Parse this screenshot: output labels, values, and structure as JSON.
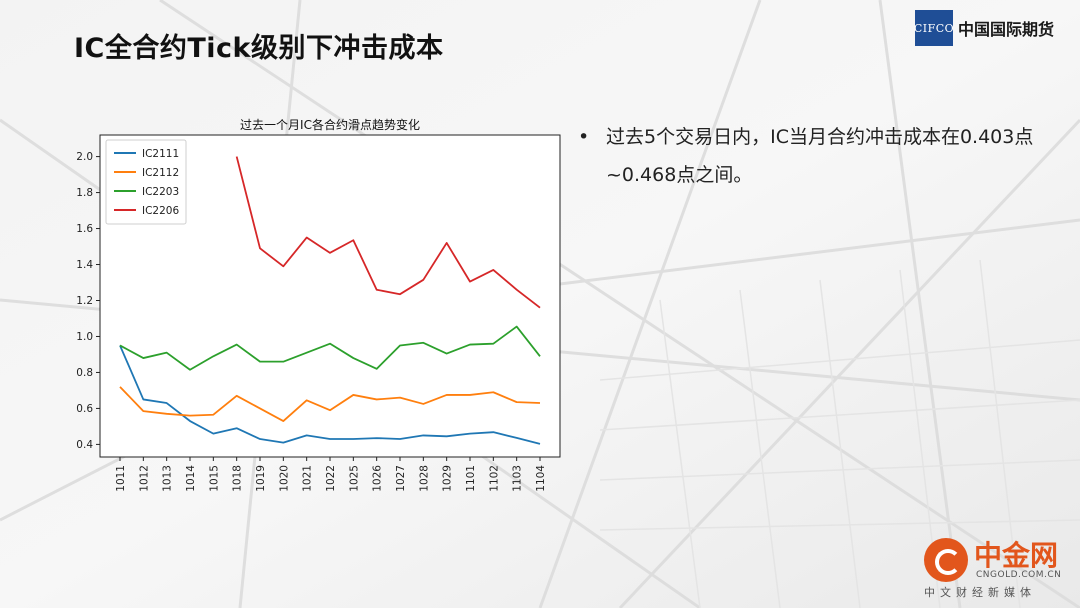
{
  "slide": {
    "title": "IC全合约Tick级别下冲击成本",
    "bullet": "过去5个交易日内，IC当月合约冲击成本在0.403点~0.468点之间。"
  },
  "logo": {
    "mark": "CIFCO",
    "name": "中国国际期货"
  },
  "watermark": {
    "name": "中金网",
    "url": "CNGOLD.COM.CN",
    "media": "中文财经新媒体"
  },
  "chart_data": {
    "type": "line",
    "title": "过去一个月IC各合约滑点趋势变化",
    "xlabel": "",
    "ylabel": "",
    "ylim": [
      0.33,
      2.12
    ],
    "yticks": [
      0.4,
      0.6,
      0.8,
      1.0,
      1.2,
      1.4,
      1.6,
      1.8,
      2.0
    ],
    "grid": false,
    "legend": "top-left",
    "categories": [
      "1011",
      "1012",
      "1013",
      "1014",
      "1015",
      "1018",
      "1019",
      "1020",
      "1021",
      "1022",
      "1025",
      "1026",
      "1027",
      "1028",
      "1029",
      "1101",
      "1102",
      "1103",
      "1104"
    ],
    "series": [
      {
        "name": "IC2111",
        "color": "#1f77b4",
        "values": [
          0.95,
          0.65,
          0.63,
          0.53,
          0.46,
          0.49,
          0.43,
          0.41,
          0.45,
          0.43,
          0.43,
          0.435,
          0.43,
          0.45,
          0.445,
          0.46,
          0.468,
          0.436,
          0.403
        ]
      },
      {
        "name": "IC2112",
        "color": "#ff7f0e",
        "values": [
          0.72,
          0.585,
          0.57,
          0.56,
          0.565,
          0.67,
          0.6,
          0.53,
          0.645,
          0.59,
          0.675,
          0.65,
          0.66,
          0.625,
          0.675,
          0.675,
          0.69,
          0.635,
          0.63
        ]
      },
      {
        "name": "IC2203",
        "color": "#2ca02c",
        "values": [
          0.95,
          0.88,
          0.91,
          0.815,
          0.89,
          0.955,
          0.86,
          0.86,
          0.91,
          0.96,
          0.88,
          0.82,
          0.95,
          0.965,
          0.905,
          0.955,
          0.96,
          1.055,
          0.89
        ]
      },
      {
        "name": "IC2206",
        "color": "#d62728",
        "values": [
          null,
          null,
          null,
          null,
          null,
          2.0,
          1.49,
          1.39,
          1.55,
          1.465,
          1.535,
          1.26,
          1.235,
          1.315,
          1.52,
          1.305,
          1.37,
          1.26,
          1.16
        ]
      }
    ]
  }
}
